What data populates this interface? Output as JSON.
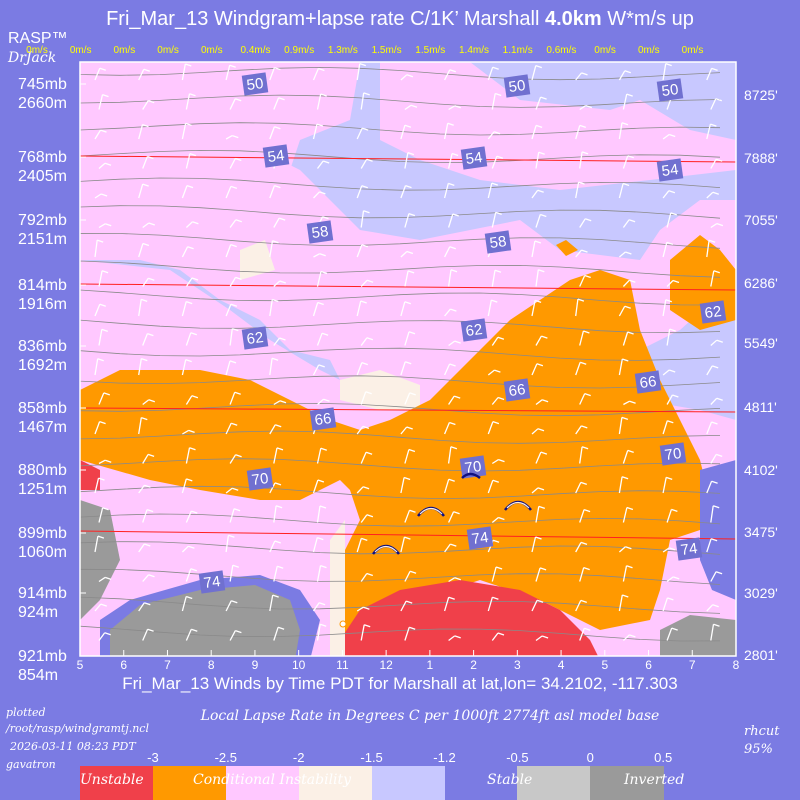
{
  "header": {
    "title_prefix": "Fri_Mar_13 Windgram+lapse rate C/1K’  Marshall ",
    "title_bold": "4.0km",
    "title_suffix": "  W*m/s up",
    "brand": "RASP™",
    "brand_sub": "DrJack"
  },
  "wind_speeds": [
    "0m/s",
    "0m/s",
    "0m/s",
    "0m/s",
    "0m/s",
    "0.4m/s",
    "0.9m/s",
    "1.3m/s",
    "1.5m/s",
    "1.5m/s",
    "1.4m/s",
    "1.1m/s",
    "0.6m/s",
    "0m/s",
    "0m/s",
    "0m/s"
  ],
  "left_axis": [
    {
      "mb": "745mb",
      "m": "2660m"
    },
    {
      "mb": "768mb",
      "m": "2405m"
    },
    {
      "mb": "792mb",
      "m": "2151m"
    },
    {
      "mb": "814mb",
      "m": "1916m"
    },
    {
      "mb": "836mb",
      "m": "1692m"
    },
    {
      "mb": "858mb",
      "m": "1467m"
    },
    {
      "mb": "880mb",
      "m": "1251m"
    },
    {
      "mb": "899mb",
      "m": "1060m"
    },
    {
      "mb": "914mb",
      "m": "924m"
    },
    {
      "mb": "921mb",
      "m": "854m"
    }
  ],
  "right_axis": [
    "8725'",
    "7888'",
    "7055'",
    "6286'",
    "5549'",
    "4811'",
    "4102'",
    "3475'",
    "3029'",
    "2801'"
  ],
  "time_ticks": [
    "5",
    "6",
    "7",
    "8",
    "9",
    "10",
    "11",
    "12",
    "1",
    "2",
    "3",
    "4",
    "5",
    "6",
    "7",
    "8"
  ],
  "temp_labels": [
    "50",
    "50",
    "50",
    "54",
    "54",
    "54",
    "58",
    "58",
    "62",
    "62",
    "62",
    "66",
    "66",
    "66",
    "70",
    "70",
    "70",
    "74",
    "74",
    "74"
  ],
  "subtitle": "Fri_Mar_13 Winds by Time PDT for Marshall at lat,lon= 34.2102, -117.303",
  "footer": {
    "plotted": "plotted",
    "path": "/root/rasp/windgramtj.ncl",
    "timestamp": "2026-03-11 08:23 PDT",
    "host": "gavatron",
    "rhcut": "rhcut",
    "rhcut_val": "95%"
  },
  "legend": {
    "title": "Local Lapse Rate in Degrees C per 1000ft  2774ft asl model base",
    "ticks": [
      "-3",
      "-2.5",
      "-2",
      "-1.5",
      "-1.2",
      "-0.5",
      "0",
      "0.5"
    ],
    "categories": [
      {
        "name": "Unstable",
        "color": "#f0404a"
      },
      {
        "name": "Conditional Instability",
        "color": "#ff9900"
      },
      {
        "name": "",
        "color": "#ffc8ff"
      },
      {
        "name": "",
        "color": "#fbf0e6"
      },
      {
        "name": "Stable",
        "color": "#c8c8ff"
      },
      {
        "name": "",
        "color": "#7b7be3"
      },
      {
        "name": "Inverted",
        "color": "#c8c8c8"
      },
      {
        "name": "",
        "color": "#9a9a9a"
      }
    ]
  },
  "chart_data": {
    "type": "heatmap",
    "x": [
      "5",
      "6",
      "7",
      "8",
      "9",
      "10",
      "11",
      "12",
      "1",
      "2",
      "3",
      "4",
      "5",
      "6",
      "7",
      "8"
    ],
    "y_pressure_mb": [
      745,
      768,
      792,
      814,
      836,
      858,
      880,
      899,
      914,
      921
    ],
    "y_height_m": [
      2660,
      2405,
      2151,
      1916,
      1692,
      1467,
      1251,
      1060,
      924,
      854
    ],
    "y_height_ft": [
      8725,
      7888,
      7055,
      6286,
      5549,
      4811,
      4102,
      3475,
      3029,
      2801
    ],
    "thermal_updraft_m_s": [
      0,
      0,
      0,
      0,
      0,
      0.4,
      0.9,
      1.3,
      1.5,
      1.5,
      1.4,
      1.1,
      0.6,
      0,
      0,
      0
    ],
    "isotherm_labels_F": [
      50,
      54,
      58,
      62,
      66,
      70,
      74
    ],
    "color_scale": {
      "variable": "Local Lapse Rate C per 1000ft",
      "breaks": [
        -3,
        -2.5,
        -2,
        -1.5,
        -1.2,
        -0.5,
        0,
        0.5
      ]
    }
  }
}
